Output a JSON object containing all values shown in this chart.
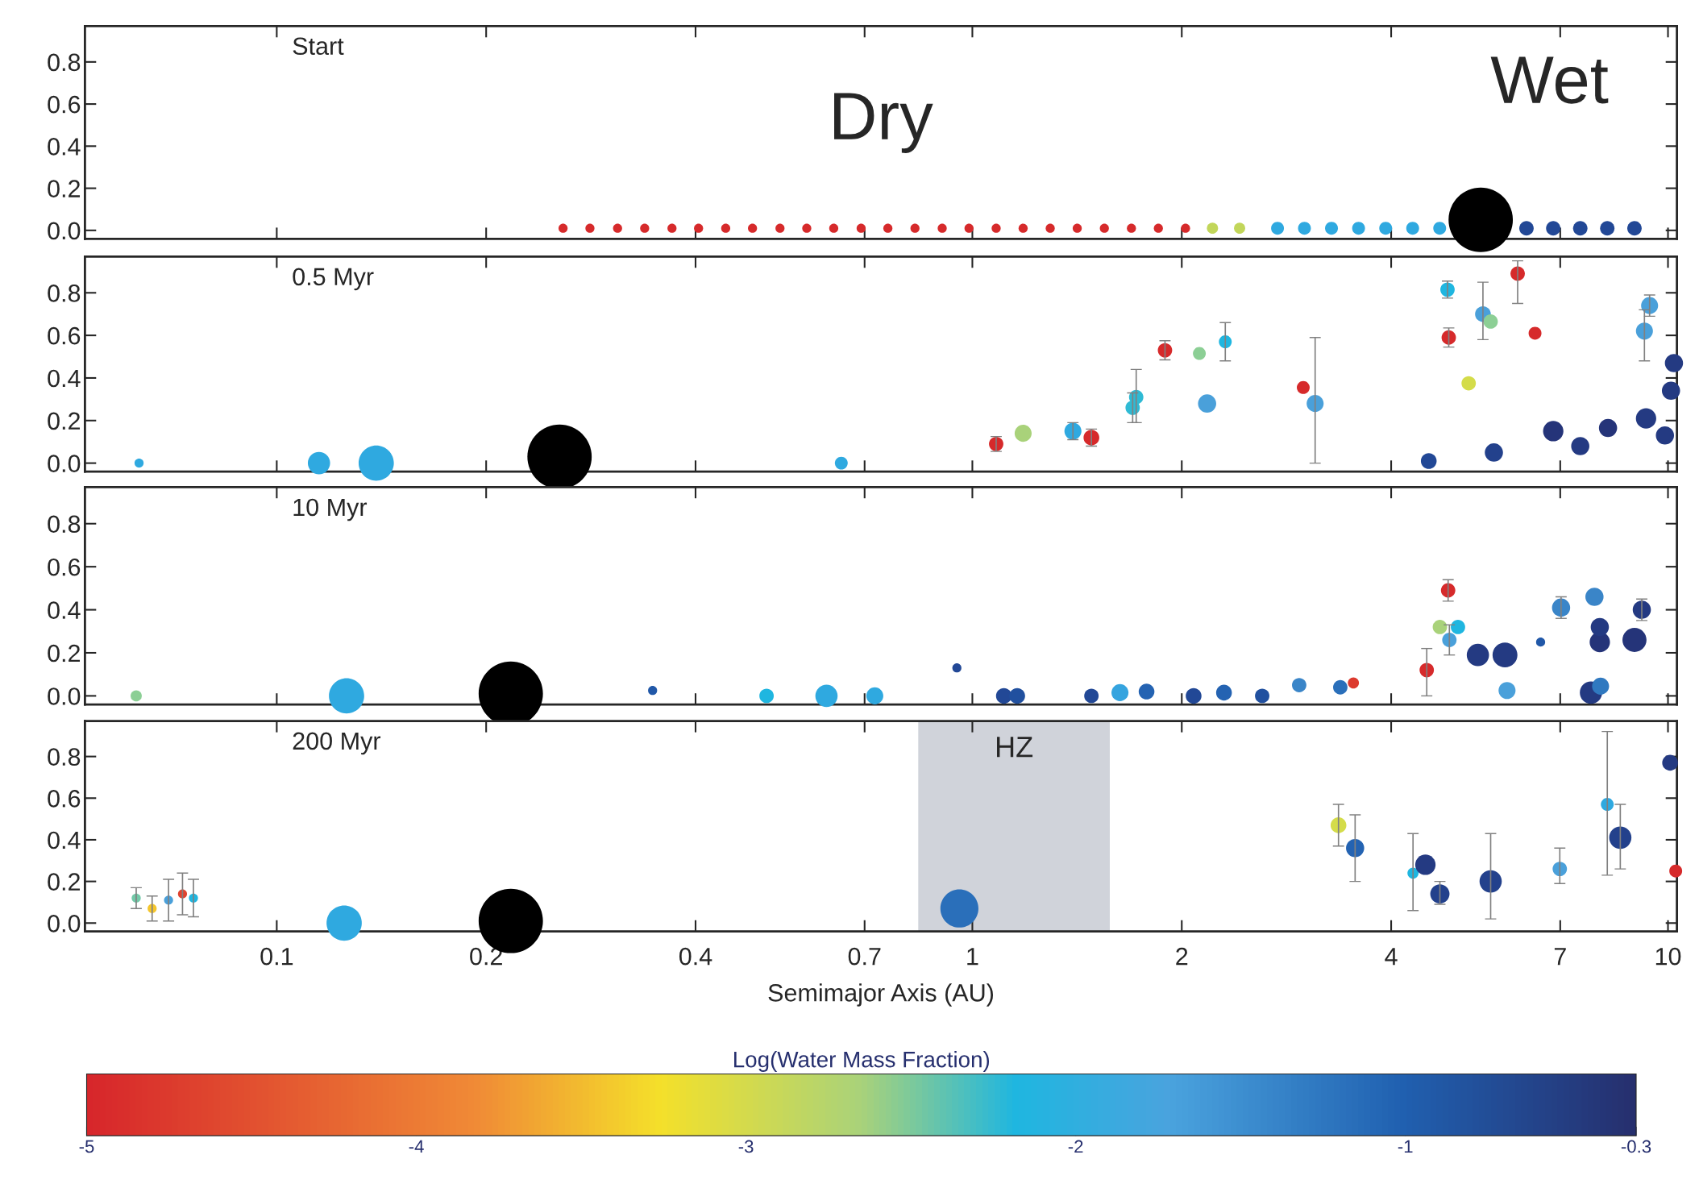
{
  "chart_data": [
    {
      "type": "bubble",
      "title": "Start",
      "xlim": [
        0.053,
        10.3
      ],
      "ylim": [
        -0.04,
        0.97
      ],
      "log": "x",
      "tick_labels": "y",
      "grid": false,
      "xticks": [
        0.1,
        0.2,
        0.4,
        0.7,
        1,
        2,
        4,
        7,
        10
      ],
      "yticks": [
        {
          "value": 0,
          "label": "0.0"
        },
        {
          "value": 0.2,
          "label": "0.2"
        },
        {
          "value": 0.4,
          "label": "0.4"
        },
        {
          "value": 0.6,
          "label": "0.6"
        },
        {
          "value": 0.8,
          "label": "0.8"
        }
      ],
      "annotations": [
        "Dry",
        "Wet"
      ],
      "series": [
        {
          "x": [
            0.258,
            0.282,
            0.309,
            0.338,
            0.37,
            0.404,
            0.442,
            0.483,
            0.529,
            0.578,
            0.632,
            0.692,
            0.756,
            0.827,
            0.905,
            0.989,
            1.082,
            1.183,
            1.294,
            1.415,
            1.548,
            1.693,
            1.851,
            2.025,
            2.214,
            2.422,
            2.746,
            3.002,
            3.283,
            3.591,
            3.928,
            4.295,
            4.697,
            6.26,
            6.84,
            7.48,
            8.18,
            8.95
          ],
          "values": [
            0.01,
            0.01,
            0.01,
            0.01,
            0.01,
            0.01,
            0.01,
            0.01,
            0.01,
            0.01,
            0.01,
            0.01,
            0.01,
            0.01,
            0.01,
            0.01,
            0.01,
            0.01,
            0.01,
            0.01,
            0.01,
            0.01,
            0.01,
            0.01,
            0.01,
            0.01,
            0.01,
            0.01,
            0.01,
            0.01,
            0.01,
            0.01,
            0.01,
            0.01,
            0.01,
            0.01,
            0.01,
            0.01
          ],
          "sizes": [
            0.02,
            0.02,
            0.02,
            0.02,
            0.02,
            0.02,
            0.02,
            0.02,
            0.02,
            0.02,
            0.02,
            0.02,
            0.02,
            0.02,
            0.02,
            0.02,
            0.02,
            0.02,
            0.02,
            0.02,
            0.02,
            0.02,
            0.02,
            0.02,
            0.03,
            0.03,
            0.04,
            0.04,
            0.04,
            0.04,
            0.04,
            0.04,
            0.04,
            0.05,
            0.05,
            0.05,
            0.05,
            0.05
          ],
          "colors": [
            "#d62a2b",
            "#d62a2b",
            "#d62a2b",
            "#d62a2b",
            "#d62a2b",
            "#d62a2b",
            "#d62a2b",
            "#d62a2b",
            "#d62a2b",
            "#d62a2b",
            "#d62a2b",
            "#d62a2b",
            "#d62a2b",
            "#d62a2b",
            "#d62a2b",
            "#d62a2b",
            "#d62a2b",
            "#d62a2b",
            "#d62a2b",
            "#d62a2b",
            "#d62a2b",
            "#d62a2b",
            "#d62a2b",
            "#d62a2b",
            "#c2d65a",
            "#c2d65a",
            "#2fa9e0",
            "#2fa9e0",
            "#2fa9e0",
            "#2fa9e0",
            "#2fa9e0",
            "#2fa9e0",
            "#2fa9e0",
            "#224896",
            "#224896",
            "#224896",
            "#224896",
            "#224896"
          ]
        },
        {
          "color": "#000000",
          "x": [
            5.38
          ],
          "values": [
            0.05
          ],
          "sizes": [
            1
          ]
        }
      ]
    },
    {
      "type": "bubble",
      "title": "0.5 Myr",
      "xlim": [
        0.053,
        10.3
      ],
      "ylim": [
        -0.04,
        0.97
      ],
      "log": "x",
      "tick_labels": "y",
      "grid": false,
      "xticks": [
        0.1,
        0.2,
        0.4,
        0.7,
        1,
        2,
        4,
        7,
        10
      ],
      "yticks": [
        {
          "value": 0,
          "label": "0.0"
        },
        {
          "value": 0.2,
          "label": "0.2"
        },
        {
          "value": 0.4,
          "label": "0.4"
        },
        {
          "value": 0.6,
          "label": "0.6"
        },
        {
          "value": 0.8,
          "label": "0.8"
        }
      ],
      "series": [
        {
          "x": [
            0.0634,
            0.115,
            0.139,
            0.648,
            1.082,
            1.183,
            1.395,
            1.483,
            1.7,
            1.72,
            1.892,
            2.12,
            2.175,
            2.31,
            2.99,
            3.11,
            4.82,
            4.84,
            5.17,
            5.42,
            5.56,
            6.08,
            6.44,
            9.41,
            9.25,
            10.2,
            10.1,
            6.84,
            9.3,
            8.2,
            7.48,
            5.62,
            4.53,
            9.9
          ],
          "values": [
            0.0,
            0.0,
            0.0,
            0.0,
            0.09,
            0.14,
            0.15,
            0.12,
            0.26,
            0.31,
            0.53,
            0.515,
            0.28,
            0.57,
            0.355,
            0.28,
            0.815,
            0.59,
            0.375,
            0.7,
            0.665,
            0.89,
            0.61,
            0.74,
            0.62,
            0.47,
            0.34,
            0.15,
            0.21,
            0.165,
            0.08,
            0.05,
            0.01,
            0.13
          ],
          "sizes": [
            0.02,
            0.12,
            0.3,
            0.04,
            0.05,
            0.07,
            0.07,
            0.06,
            0.05,
            0.05,
            0.05,
            0.04,
            0.08,
            0.04,
            0.04,
            0.07,
            0.05,
            0.05,
            0.05,
            0.06,
            0.05,
            0.05,
            0.04,
            0.07,
            0.07,
            0.08,
            0.08,
            0.1,
            0.1,
            0.08,
            0.08,
            0.08,
            0.06,
            0.08
          ],
          "colors": [
            "#2fa9e0",
            "#2fa9e0",
            "#2fa9e0",
            "#2fa9e0",
            "#d62a2b",
            "#a9d27a",
            "#2fa9e0",
            "#d62a2b",
            "#2fbad4",
            "#2fbad4",
            "#d62a2b",
            "#8ccf95",
            "#4aa0da",
            "#1fb6e0",
            "#d62a2b",
            "#4aa0da",
            "#1fb6e0",
            "#d62a2b",
            "#d4dc4a",
            "#4aa0da",
            "#8ccf95",
            "#d62a2b",
            "#d62a2b",
            "#4aa0da",
            "#4aa0da",
            "#243a82",
            "#243a82",
            "#253479",
            "#243a82",
            "#253479",
            "#243a82",
            "#23418c",
            "#224896",
            "#243a82"
          ],
          "errors": [
            null,
            null,
            null,
            null,
            0.035,
            null,
            0.04,
            0.04,
            0.07,
            [
              0.19,
              0.44
            ],
            0.045,
            null,
            null,
            [
              0.48,
              0.66
            ],
            null,
            [
              0.0,
              0.59
            ],
            0.04,
            0.045,
            null,
            [
              0.58,
              0.85
            ],
            null,
            [
              0.75,
              0.95
            ],
            null,
            0.05,
            [
              0.48,
              0.72
            ],
            null,
            null,
            null,
            null,
            null,
            null,
            null,
            null,
            null
          ]
        },
        {
          "color": "#000000",
          "x": [
            0.255
          ],
          "values": [
            0.03
          ],
          "sizes": [
            1
          ]
        }
      ]
    },
    {
      "type": "bubble",
      "title": "10 Myr",
      "xlim": [
        0.053,
        10.3
      ],
      "ylim": [
        -0.04,
        0.97
      ],
      "log": "x",
      "tick_labels": "y",
      "grid": false,
      "xticks": [
        0.1,
        0.2,
        0.4,
        0.7,
        1,
        2,
        4,
        7,
        10
      ],
      "yticks": [
        {
          "value": 0,
          "label": "0.0"
        },
        {
          "value": 0.2,
          "label": "0.2"
        },
        {
          "value": 0.4,
          "label": "0.4"
        },
        {
          "value": 0.6,
          "label": "0.6"
        },
        {
          "value": 0.8,
          "label": "0.8"
        }
      ],
      "series": [
        {
          "x": [
            0.0628,
            0.126,
            0.347,
            0.506,
            0.617,
            0.724,
            0.95,
            1.11,
            1.16,
            1.483,
            1.63,
            1.78,
            2.08,
            2.3,
            2.61,
            2.95,
            3.38,
            3.53,
            4.5,
            4.7,
            4.83,
            4.85,
            4.99,
            5.33,
            5.83,
            5.87,
            7.02,
            7.84,
            7.98,
            7.98,
            8.95,
            9.17,
            7.75,
            8.0,
            6.56
          ],
          "values": [
            0.0,
            0.0,
            0.025,
            0.0,
            0.0,
            0.0,
            0.13,
            0.0,
            0.0,
            0.0,
            0.015,
            0.02,
            0.0,
            0.015,
            0.0,
            0.05,
            0.04,
            0.06,
            0.12,
            0.32,
            0.49,
            0.26,
            0.32,
            0.19,
            0.19,
            0.025,
            0.41,
            0.46,
            0.25,
            0.32,
            0.26,
            0.4,
            0.015,
            0.045,
            0.25
          ],
          "sizes": [
            0.03,
            0.3,
            0.02,
            0.05,
            0.12,
            0.07,
            0.02,
            0.06,
            0.06,
            0.05,
            0.07,
            0.06,
            0.06,
            0.06,
            0.05,
            0.05,
            0.05,
            0.03,
            0.05,
            0.05,
            0.05,
            0.05,
            0.05,
            0.12,
            0.15,
            0.07,
            0.08,
            0.08,
            0.1,
            0.08,
            0.14,
            0.08,
            0.12,
            0.07,
            0.02
          ],
          "colors": [
            "#8ccf95",
            "#2fa9e0",
            "#2158a8",
            "#1fb6e0",
            "#2fa9e0",
            "#2fa9e0",
            "#224896",
            "#224896",
            "#21509f",
            "#224896",
            "#35a4df",
            "#2463b2",
            "#224896",
            "#2463b2",
            "#21509f",
            "#3a85c8",
            "#2a6fba",
            "#dc3a2e",
            "#d62a2b",
            "#a9d27a",
            "#d62a2b",
            "#4aa0da",
            "#1fb6e0",
            "#243a82",
            "#243a82",
            "#4aa0da",
            "#3a85c8",
            "#3a85c8",
            "#253479",
            "#243a82",
            "#253479",
            "#243a82",
            "#243a82",
            "#3079c0",
            "#2158a8"
          ],
          "errors": [
            null,
            null,
            null,
            null,
            null,
            null,
            null,
            null,
            null,
            null,
            null,
            null,
            null,
            null,
            null,
            null,
            null,
            null,
            [
              0.0,
              0.22
            ],
            null,
            0.05,
            [
              0.19,
              0.33
            ],
            null,
            null,
            null,
            null,
            0.05,
            null,
            null,
            null,
            null,
            0.05,
            null,
            null,
            null
          ]
        },
        {
          "color": "#000000",
          "x": [
            0.217
          ],
          "values": [
            0.01
          ],
          "sizes": [
            1
          ]
        }
      ]
    },
    {
      "type": "bubble",
      "title": "200 Myr",
      "xlabel": "Semimajor Axis (AU)",
      "clabel": "Log(Water Mass Fraction)",
      "xlim": [
        0.053,
        10.3
      ],
      "ylim": [
        -0.04,
        0.97
      ],
      "log": "x",
      "grid": false,
      "xticks": [
        0.1,
        0.2,
        0.4,
        0.7,
        1,
        2,
        4,
        7,
        10
      ],
      "yticks": [
        {
          "value": 0,
          "label": "0.0"
        },
        {
          "value": 0.2,
          "label": "0.2"
        },
        {
          "value": 0.4,
          "label": "0.4"
        },
        {
          "value": 0.6,
          "label": "0.6"
        },
        {
          "value": 0.8,
          "label": "0.8"
        }
      ],
      "clim": [
        -5,
        -0.3
      ],
      "cticks": [
        -5,
        -4,
        -3,
        -2,
        -1,
        -0.3
      ],
      "bands": [
        {
          "axis": "x",
          "from": 0.836,
          "to": 1.576,
          "label": "HZ",
          "color": "#d0d3da"
        }
      ],
      "series": [
        {
          "x": [
            0.0628,
            0.0662,
            0.0699,
            0.0732,
            0.0759,
            0.125,
            0.958,
            3.36,
            3.55,
            4.3,
            4.48,
            4.7,
            5.56,
            6.99,
            8.18,
            8.54,
            10.07,
            10.26
          ],
          "values": [
            0.12,
            0.07,
            0.11,
            0.14,
            0.12,
            0.0,
            0.07,
            0.47,
            0.36,
            0.24,
            0.28,
            0.14,
            0.2,
            0.26,
            0.57,
            0.41,
            0.77,
            0.25
          ],
          "sizes": [
            0.02,
            0.02,
            0.02,
            0.02,
            0.02,
            0.3,
            0.35,
            0.06,
            0.08,
            0.03,
            0.1,
            0.09,
            0.12,
            0.05,
            0.04,
            0.12,
            0.06,
            0.04
          ],
          "colors": [
            "#72c9a8",
            "#f4c52c",
            "#4aa0da",
            "#df4430",
            "#1fb6e0",
            "#2fa9e0",
            "#2a6fba",
            "#d4dc4a",
            "#2463b2",
            "#1fb6e0",
            "#243a82",
            "#23418c",
            "#23418c",
            "#4aa0da",
            "#2fa9e0",
            "#23418c",
            "#243a82",
            "#d62a2b"
          ],
          "errors": [
            0.05,
            0.06,
            0.1,
            0.1,
            0.09,
            null,
            null,
            [
              0.37,
              0.57
            ],
            [
              0.2,
              0.52
            ],
            [
              0.06,
              0.43
            ],
            null,
            [
              0.09,
              0.2
            ],
            [
              0.02,
              0.43
            ],
            [
              0.19,
              0.36
            ],
            [
              0.23,
              0.92
            ],
            [
              0.26,
              0.57
            ],
            null,
            null
          ]
        },
        {
          "color": "#000000",
          "x": [
            0.217
          ],
          "values": [
            0.01
          ],
          "sizes": [
            1
          ]
        }
      ]
    }
  ]
}
